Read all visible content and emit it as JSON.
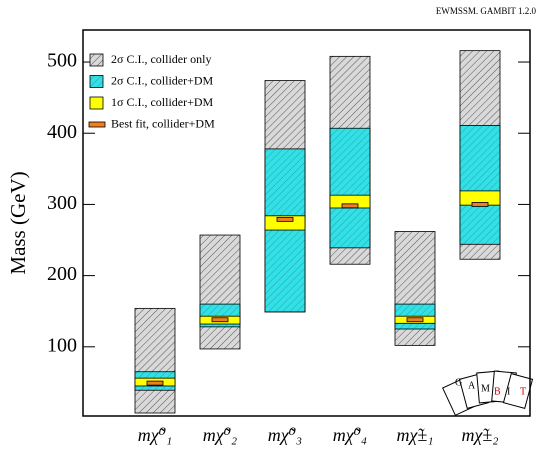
{
  "chart_data": {
    "type": "range",
    "annotation": "EWMSSM. GAMBIT 1.2.0",
    "y_label": "Mass (GeV)",
    "categories": [
      "mχ̃⁰₁",
      "mχ̃⁰₂",
      "mχ̃⁰₃",
      "mχ̃⁰₄",
      "mχ̃±₁",
      "mχ̃±₂"
    ],
    "ylim": [
      0,
      545
    ],
    "yticks": [
      100,
      200,
      300,
      400,
      500
    ],
    "legend": "upper left",
    "series": [
      {
        "name": "2σ C.I., collider only",
        "color": "#d9d9d9",
        "hatch": true,
        "low": [
          7,
          97,
          149,
          216,
          102,
          223
        ],
        "high": [
          154,
          257,
          474,
          508,
          262,
          516
        ]
      },
      {
        "name": "2σ C.I., collider+DM",
        "color": "#33e0e6",
        "hatch": true,
        "low": [
          39,
          128,
          149,
          239,
          125,
          244
        ],
        "high": [
          65,
          160,
          378,
          407,
          160,
          411
        ]
      },
      {
        "name": "1σ C.I., collider+DM",
        "color": "#ffff00",
        "hatch": false,
        "low": [
          45,
          132,
          264,
          295,
          133,
          299
        ],
        "high": [
          56,
          143,
          284,
          313,
          143,
          319
        ]
      },
      {
        "name": "Best fit, collider+DM",
        "color": "#f07f1f",
        "marker": true,
        "values": [
          49,
          138,
          279,
          298,
          138,
          300
        ]
      }
    ],
    "logo_letters": [
      "G",
      "A",
      "M",
      "B",
      "I",
      "T"
    ]
  }
}
